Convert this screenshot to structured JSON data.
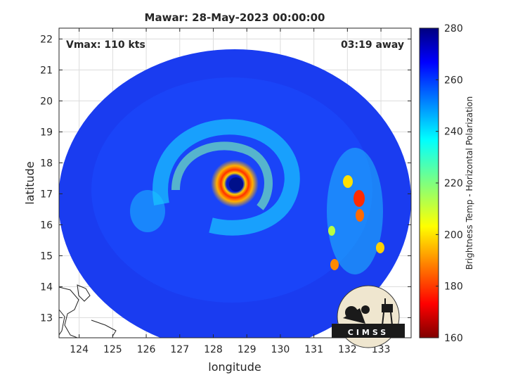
{
  "chart_data": {
    "type": "heatmap",
    "title": "Mawar: 28-May-2023 00:00:00",
    "xlabel": "longitude",
    "ylabel": "latitude",
    "xlim": [
      123.4,
      133.9
    ],
    "ylim": [
      12.35,
      22.35
    ],
    "xticks": [
      124,
      125,
      126,
      127,
      128,
      129,
      130,
      131,
      132,
      133
    ],
    "yticks": [
      13,
      14,
      15,
      16,
      17,
      18,
      19,
      20,
      21,
      22
    ],
    "grid": true,
    "annotations": {
      "vmax": "Vmax: 110 kts",
      "time_offset": "03:19 away"
    },
    "colorbar": {
      "label": "Brightness Temp - Horizontal Polarization",
      "range": [
        160,
        280
      ],
      "ticks": [
        160,
        180,
        200,
        220,
        240,
        260,
        280
      ],
      "colormap": "jet"
    },
    "swath": {
      "center_lon": 128.7,
      "center_lat": 17.3
    },
    "eye": {
      "lon": 128.9,
      "lat": 17.1
    },
    "logo_text": "CIMSS"
  }
}
